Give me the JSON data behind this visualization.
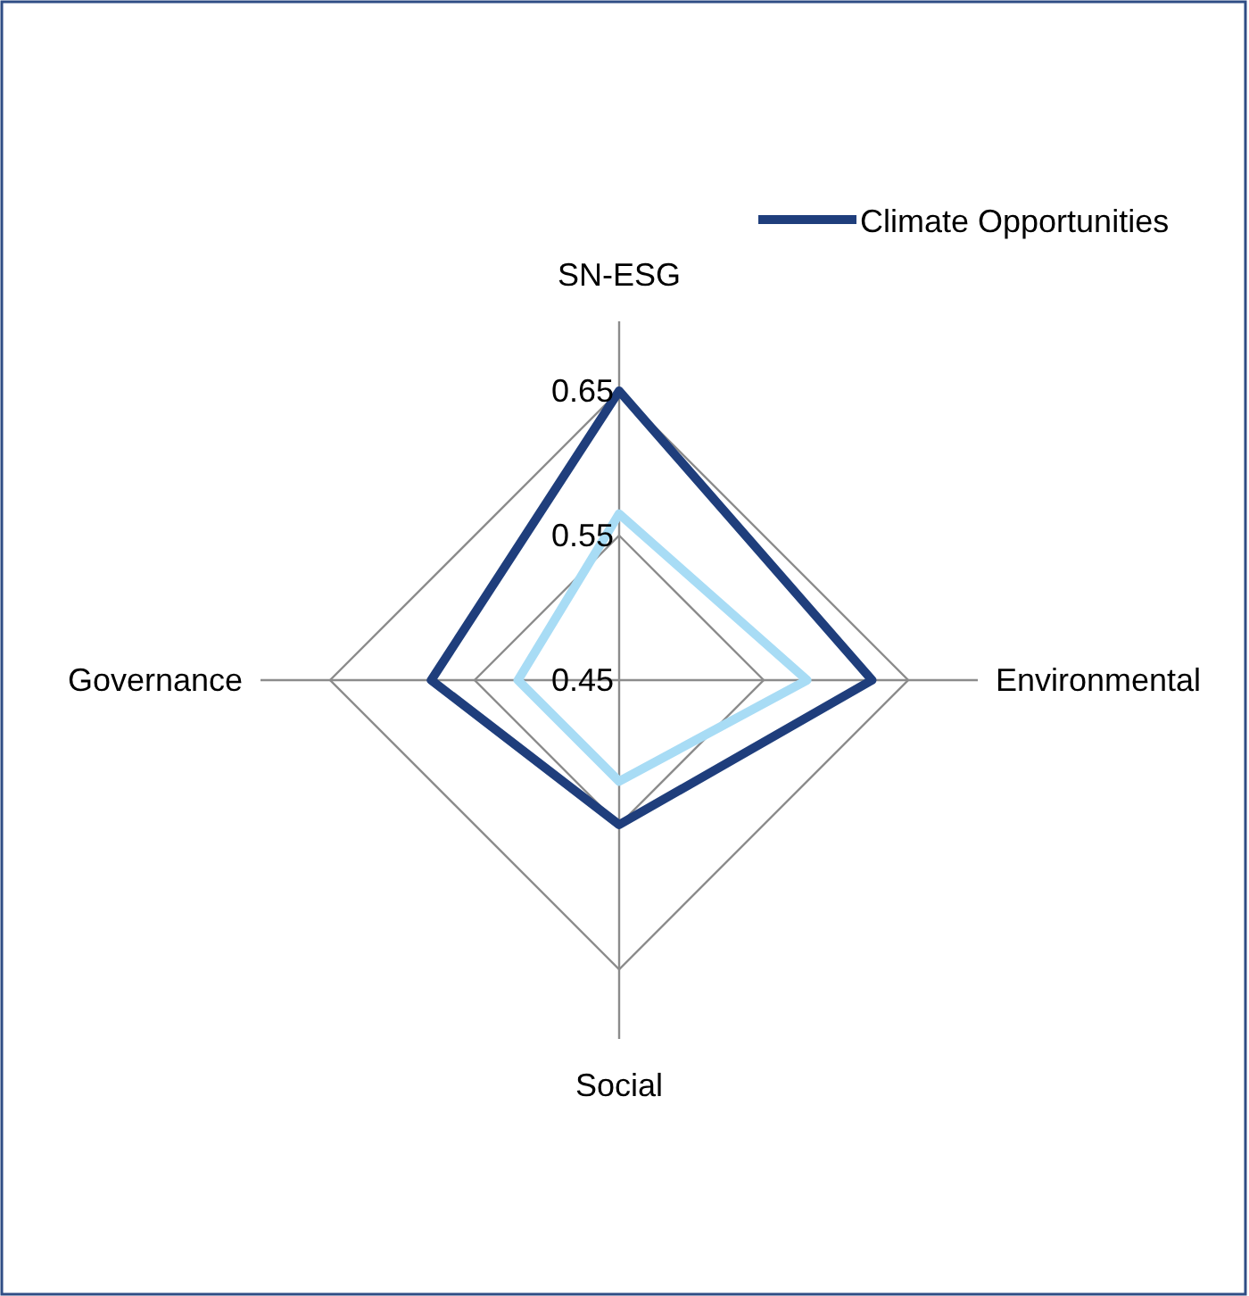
{
  "chart_data": {
    "type": "radar",
    "categories": [
      "SN-ESG",
      "Environmental",
      "Social",
      "Governance"
    ],
    "series": [
      {
        "name": "Climate Opportunities",
        "color": "#1f3e7c",
        "values": [
          0.65,
          0.625,
          0.55,
          0.58
        ]
      },
      {
        "color": "#a8dcf5",
        "values": [
          0.565,
          0.58,
          0.52,
          0.52
        ]
      }
    ],
    "ylim": [
      0.45,
      0.65
    ],
    "yticks": [
      0.45,
      0.55,
      0.65
    ],
    "legend": "top right"
  }
}
